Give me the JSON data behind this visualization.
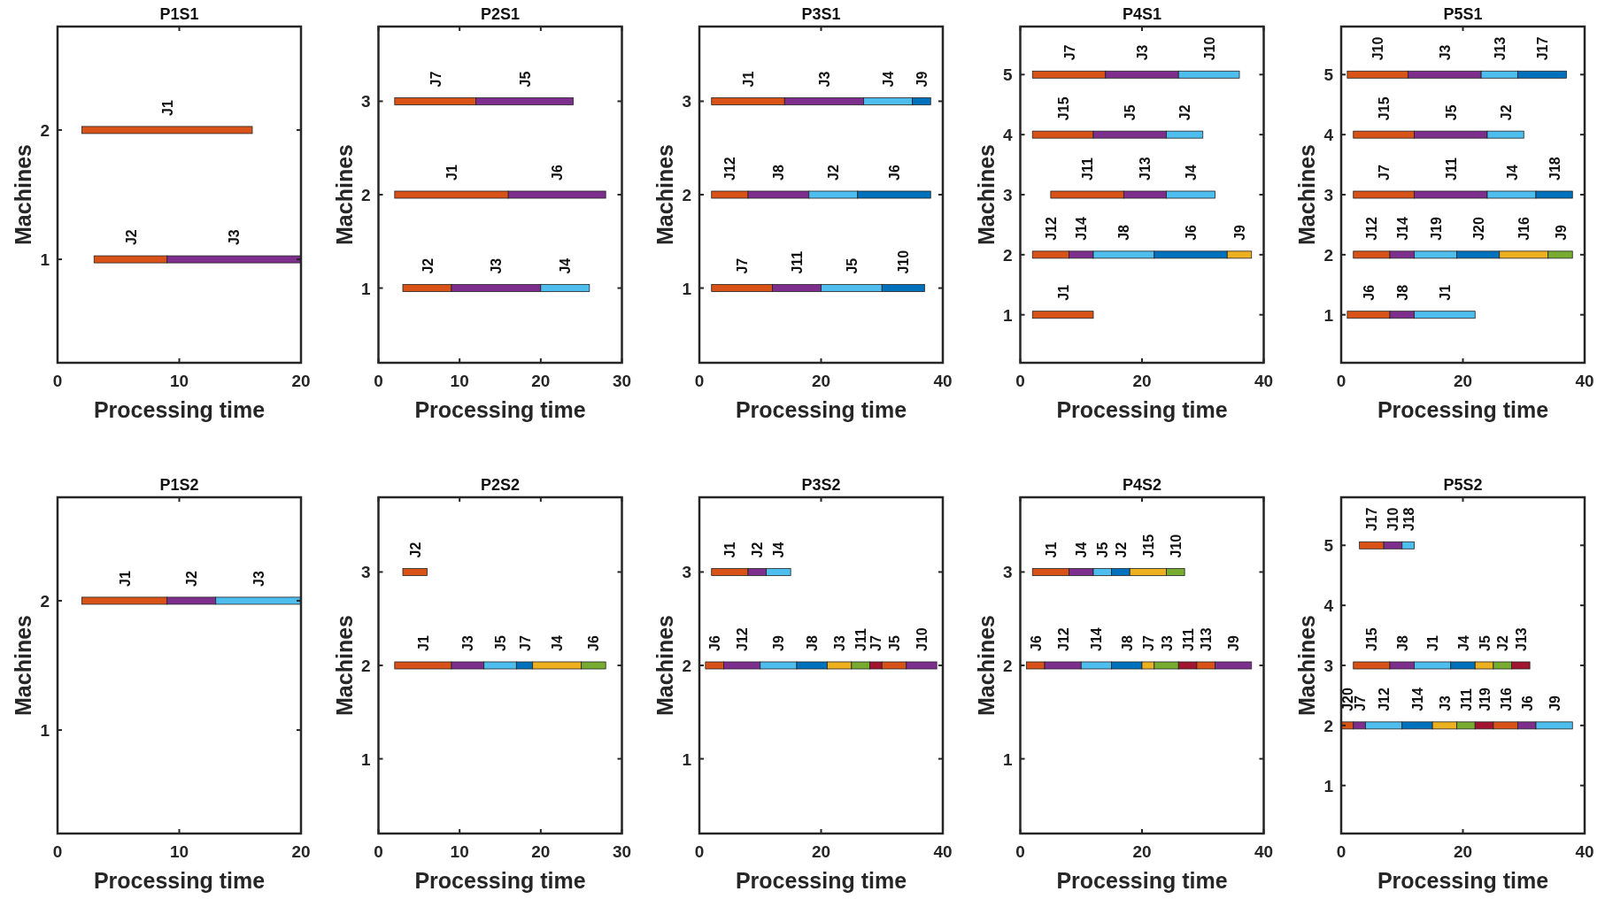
{
  "chart_data": [
    {
      "type": "bar",
      "orientation": "horizontal",
      "title": "P1S1",
      "xlabel": "Processing time",
      "ylabel": "Machines",
      "xlim": [
        0,
        20
      ],
      "xticks": [
        0,
        10,
        20
      ],
      "categories": [
        "2",
        "1"
      ],
      "series": [
        {
          "name": "J1",
          "color": "#d95319",
          "values": [
            14,
            null
          ],
          "base": [
            2,
            null
          ]
        },
        {
          "name": "J2",
          "color": "#d95319",
          "values": [
            null,
            6
          ],
          "base": [
            null,
            3
          ]
        },
        {
          "name": "J3",
          "color": "#7e2f8e",
          "values": [
            null,
            11
          ],
          "base": [
            null,
            9
          ]
        }
      ]
    },
    {
      "type": "bar",
      "orientation": "horizontal",
      "title": "P2S1",
      "xlabel": "Processing time",
      "ylabel": "Machines",
      "xlim": [
        0,
        30
      ],
      "xticks": [
        0,
        10,
        20,
        30
      ],
      "categories": [
        "3",
        "2",
        "1"
      ],
      "series": [
        {
          "name": "J7",
          "color": "#d95319",
          "values": [
            10,
            null,
            null
          ],
          "base": [
            2,
            null,
            null
          ]
        },
        {
          "name": "J5",
          "color": "#7e2f8e",
          "values": [
            12,
            null,
            null
          ],
          "base": [
            12,
            null,
            null
          ]
        },
        {
          "name": "J1",
          "color": "#d95319",
          "values": [
            null,
            14,
            null
          ],
          "base": [
            null,
            2,
            null
          ]
        },
        {
          "name": "J6",
          "color": "#7e2f8e",
          "values": [
            null,
            12,
            null
          ],
          "base": [
            null,
            16,
            null
          ]
        },
        {
          "name": "J2",
          "color": "#d95319",
          "values": [
            null,
            null,
            6
          ],
          "base": [
            null,
            null,
            3
          ]
        },
        {
          "name": "J3",
          "color": "#7e2f8e",
          "values": [
            null,
            null,
            11
          ],
          "base": [
            null,
            null,
            9
          ]
        },
        {
          "name": "J4",
          "color": "#4dbeee",
          "values": [
            null,
            null,
            6
          ],
          "base": [
            null,
            null,
            20
          ]
        }
      ]
    },
    {
      "type": "bar",
      "orientation": "horizontal",
      "title": "P3S1",
      "xlabel": "Processing time",
      "ylabel": "Machines",
      "xlim": [
        0,
        40
      ],
      "xticks": [
        0,
        20,
        40
      ],
      "categories": [
        "3",
        "2",
        "1"
      ],
      "series": [
        {
          "name": "J1",
          "color": "#d95319",
          "values": [
            12,
            null,
            null
          ],
          "base": [
            2,
            null,
            null
          ]
        },
        {
          "name": "J3",
          "color": "#7e2f8e",
          "values": [
            13,
            null,
            null
          ],
          "base": [
            14,
            null,
            null
          ]
        },
        {
          "name": "J4",
          "color": "#4dbeee",
          "values": [
            8,
            null,
            null
          ],
          "base": [
            27,
            null,
            null
          ]
        },
        {
          "name": "J9",
          "color": "#0072bd",
          "values": [
            3,
            null,
            null
          ],
          "base": [
            35,
            null,
            null
          ]
        },
        {
          "name": "J12",
          "color": "#d95319",
          "values": [
            null,
            6,
            null
          ],
          "base": [
            null,
            2,
            null
          ]
        },
        {
          "name": "J8",
          "color": "#7e2f8e",
          "values": [
            null,
            10,
            null
          ],
          "base": [
            null,
            8,
            null
          ]
        },
        {
          "name": "J2",
          "color": "#4dbeee",
          "values": [
            null,
            8,
            null
          ],
          "base": [
            null,
            18,
            null
          ]
        },
        {
          "name": "J6",
          "color": "#0072bd",
          "values": [
            null,
            12,
            null
          ],
          "base": [
            null,
            26,
            null
          ]
        },
        {
          "name": "J7",
          "color": "#d95319",
          "values": [
            null,
            null,
            10
          ],
          "base": [
            null,
            null,
            2
          ]
        },
        {
          "name": "J11",
          "color": "#7e2f8e",
          "values": [
            null,
            null,
            8
          ],
          "base": [
            null,
            null,
            12
          ]
        },
        {
          "name": "J5",
          "color": "#4dbeee",
          "values": [
            null,
            null,
            10
          ],
          "base": [
            null,
            null,
            20
          ]
        },
        {
          "name": "J10",
          "color": "#0072bd",
          "values": [
            null,
            null,
            7
          ],
          "base": [
            null,
            null,
            30
          ]
        }
      ]
    },
    {
      "type": "bar",
      "orientation": "horizontal",
      "title": "P4S1",
      "xlabel": "Processing time",
      "ylabel": "Machines",
      "xlim": [
        0,
        40
      ],
      "xticks": [
        0,
        20,
        40
      ],
      "categories": [
        "5",
        "4",
        "3",
        "2",
        "1"
      ],
      "series": [
        {
          "name": "J7",
          "color": "#d95319",
          "values": [
            12,
            null,
            null,
            null,
            null
          ],
          "base": [
            2,
            null,
            null,
            null,
            null
          ]
        },
        {
          "name": "J3",
          "color": "#7e2f8e",
          "values": [
            12,
            null,
            null,
            null,
            null
          ],
          "base": [
            14,
            null,
            null,
            null,
            null
          ]
        },
        {
          "name": "J10",
          "color": "#4dbeee",
          "values": [
            10,
            null,
            null,
            null,
            null
          ],
          "base": [
            26,
            null,
            null,
            null,
            null
          ]
        },
        {
          "name": "J15",
          "color": "#d95319",
          "values": [
            null,
            10,
            null,
            null,
            null
          ],
          "base": [
            null,
            2,
            null,
            null,
            null
          ]
        },
        {
          "name": "J5",
          "color": "#7e2f8e",
          "values": [
            null,
            12,
            null,
            null,
            null
          ],
          "base": [
            null,
            12,
            null,
            null,
            null
          ]
        },
        {
          "name": "J2",
          "color": "#4dbeee",
          "values": [
            null,
            6,
            null,
            null,
            null
          ],
          "base": [
            null,
            24,
            null,
            null,
            null
          ]
        },
        {
          "name": "J11",
          "color": "#d95319",
          "values": [
            null,
            null,
            12,
            null,
            null
          ],
          "base": [
            null,
            null,
            5,
            null,
            null
          ]
        },
        {
          "name": "J13",
          "color": "#7e2f8e",
          "values": [
            null,
            null,
            7,
            null,
            null
          ],
          "base": [
            null,
            null,
            17,
            null,
            null
          ]
        },
        {
          "name": "J4",
          "color": "#4dbeee",
          "values": [
            null,
            null,
            8,
            null,
            null
          ],
          "base": [
            null,
            null,
            24,
            null,
            null
          ]
        },
        {
          "name": "J12",
          "color": "#d95319",
          "values": [
            null,
            null,
            null,
            6,
            null
          ],
          "base": [
            null,
            null,
            null,
            2,
            null
          ]
        },
        {
          "name": "J14",
          "color": "#7e2f8e",
          "values": [
            null,
            null,
            null,
            4,
            null
          ],
          "base": [
            null,
            null,
            null,
            8,
            null
          ]
        },
        {
          "name": "J8",
          "color": "#4dbeee",
          "values": [
            null,
            null,
            null,
            10,
            null
          ],
          "base": [
            null,
            null,
            null,
            12,
            null
          ]
        },
        {
          "name": "J6",
          "color": "#0072bd",
          "values": [
            null,
            null,
            null,
            12,
            null
          ],
          "base": [
            null,
            null,
            null,
            22,
            null
          ]
        },
        {
          "name": "J9",
          "color": "#edb120",
          "values": [
            null,
            null,
            null,
            4,
            null
          ],
          "base": [
            null,
            null,
            null,
            34,
            null
          ]
        },
        {
          "name": "J1",
          "color": "#d95319",
          "values": [
            null,
            null,
            null,
            null,
            10
          ],
          "base": [
            null,
            null,
            null,
            null,
            2
          ]
        }
      ]
    },
    {
      "type": "bar",
      "orientation": "horizontal",
      "title": "P5S1",
      "xlabel": "Processing time",
      "ylabel": "Machines",
      "xlim": [
        0,
        40
      ],
      "xticks": [
        0,
        20,
        40
      ],
      "categories": [
        "5",
        "4",
        "3",
        "2",
        "1"
      ],
      "series": [
        {
          "name": "J10",
          "color": "#d95319",
          "values": [
            10,
            null,
            null,
            null,
            null
          ],
          "base": [
            1,
            null,
            null,
            null,
            null
          ]
        },
        {
          "name": "J3",
          "color": "#7e2f8e",
          "values": [
            12,
            null,
            null,
            null,
            null
          ],
          "base": [
            11,
            null,
            null,
            null,
            null
          ]
        },
        {
          "name": "J13",
          "color": "#4dbeee",
          "values": [
            6,
            null,
            null,
            null,
            null
          ],
          "base": [
            23,
            null,
            null,
            null,
            null
          ]
        },
        {
          "name": "J17",
          "color": "#0072bd",
          "values": [
            8,
            null,
            null,
            null,
            null
          ],
          "base": [
            29,
            null,
            null,
            null,
            null
          ]
        },
        {
          "name": "J15",
          "color": "#d95319",
          "values": [
            null,
            10,
            null,
            null,
            null
          ],
          "base": [
            null,
            2,
            null,
            null,
            null
          ]
        },
        {
          "name": "J5",
          "color": "#7e2f8e",
          "values": [
            null,
            12,
            null,
            null,
            null
          ],
          "base": [
            null,
            12,
            null,
            null,
            null
          ]
        },
        {
          "name": "J2",
          "color": "#4dbeee",
          "values": [
            null,
            6,
            null,
            null,
            null
          ],
          "base": [
            null,
            24,
            null,
            null,
            null
          ]
        },
        {
          "name": "J7",
          "color": "#d95319",
          "values": [
            null,
            null,
            10,
            null,
            null
          ],
          "base": [
            null,
            null,
            2,
            null,
            null
          ]
        },
        {
          "name": "J11",
          "color": "#7e2f8e",
          "values": [
            null,
            null,
            12,
            null,
            null
          ],
          "base": [
            null,
            null,
            12,
            null,
            null
          ]
        },
        {
          "name": "J4",
          "color": "#4dbeee",
          "values": [
            null,
            null,
            8,
            null,
            null
          ],
          "base": [
            null,
            null,
            24,
            null,
            null
          ]
        },
        {
          "name": "J18",
          "color": "#0072bd",
          "values": [
            null,
            null,
            6,
            null,
            null
          ],
          "base": [
            null,
            null,
            32,
            null,
            null
          ]
        },
        {
          "name": "J12",
          "color": "#d95319",
          "values": [
            null,
            null,
            null,
            6,
            null
          ],
          "base": [
            null,
            null,
            null,
            2,
            null
          ]
        },
        {
          "name": "J14",
          "color": "#7e2f8e",
          "values": [
            null,
            null,
            null,
            4,
            null
          ],
          "base": [
            null,
            null,
            null,
            8,
            null
          ]
        },
        {
          "name": "J19",
          "color": "#4dbeee",
          "values": [
            null,
            null,
            null,
            7,
            null
          ],
          "base": [
            null,
            null,
            null,
            12,
            null
          ]
        },
        {
          "name": "J20",
          "color": "#0072bd",
          "values": [
            null,
            null,
            null,
            7,
            null
          ],
          "base": [
            null,
            null,
            null,
            19,
            null
          ]
        },
        {
          "name": "J16",
          "color": "#edb120",
          "values": [
            null,
            null,
            null,
            8,
            null
          ],
          "base": [
            null,
            null,
            null,
            26,
            null
          ]
        },
        {
          "name": "J9",
          "color": "#77ac30",
          "values": [
            null,
            null,
            null,
            4,
            null
          ],
          "base": [
            null,
            null,
            null,
            34,
            null
          ]
        },
        {
          "name": "J6",
          "color": "#d95319",
          "values": [
            null,
            null,
            null,
            null,
            7
          ],
          "base": [
            null,
            null,
            null,
            null,
            1
          ]
        },
        {
          "name": "J8",
          "color": "#7e2f8e",
          "values": [
            null,
            null,
            null,
            null,
            4
          ],
          "base": [
            null,
            null,
            null,
            null,
            8
          ]
        },
        {
          "name": "J1",
          "color": "#4dbeee",
          "values": [
            null,
            null,
            null,
            null,
            10
          ],
          "base": [
            null,
            null,
            null,
            null,
            12
          ]
        }
      ]
    },
    {
      "type": "bar",
      "orientation": "horizontal",
      "title": "P1S2",
      "xlabel": "Processing time",
      "ylabel": "Machines",
      "xlim": [
        0,
        20
      ],
      "xticks": [
        0,
        10,
        20
      ],
      "categories": [
        "2",
        "1"
      ],
      "series": [
        {
          "name": "J1",
          "color": "#d95319",
          "values": [
            7,
            null
          ],
          "base": [
            2,
            null
          ]
        },
        {
          "name": "J2",
          "color": "#7e2f8e",
          "values": [
            4,
            null
          ],
          "base": [
            9,
            null
          ]
        },
        {
          "name": "J3",
          "color": "#4dbeee",
          "values": [
            7,
            null
          ],
          "base": [
            13,
            null
          ]
        }
      ]
    },
    {
      "type": "bar",
      "orientation": "horizontal",
      "title": "P2S2",
      "xlabel": "Processing time",
      "ylabel": "Machines",
      "xlim": [
        0,
        30
      ],
      "xticks": [
        0,
        10,
        20,
        30
      ],
      "categories": [
        "3",
        "2",
        "1"
      ],
      "series": [
        {
          "name": "J2",
          "color": "#d95319",
          "values": [
            3,
            null,
            null
          ],
          "base": [
            3,
            null,
            null
          ]
        },
        {
          "name": "J1",
          "color": "#d95319",
          "values": [
            null,
            7,
            null
          ],
          "base": [
            null,
            2,
            null
          ]
        },
        {
          "name": "J3",
          "color": "#7e2f8e",
          "values": [
            null,
            4,
            null
          ],
          "base": [
            null,
            9,
            null
          ]
        },
        {
          "name": "J5",
          "color": "#4dbeee",
          "values": [
            null,
            4,
            null
          ],
          "base": [
            null,
            13,
            null
          ]
        },
        {
          "name": "J7",
          "color": "#0072bd",
          "values": [
            null,
            2,
            null
          ],
          "base": [
            null,
            17,
            null
          ]
        },
        {
          "name": "J4",
          "color": "#edb120",
          "values": [
            null,
            6,
            null
          ],
          "base": [
            null,
            19,
            null
          ]
        },
        {
          "name": "J6",
          "color": "#77ac30",
          "values": [
            null,
            3,
            null
          ],
          "base": [
            null,
            25,
            null
          ]
        }
      ]
    },
    {
      "type": "bar",
      "orientation": "horizontal",
      "title": "P3S2",
      "xlabel": "Processing time",
      "ylabel": "Machines",
      "xlim": [
        0,
        40
      ],
      "xticks": [
        0,
        20,
        40
      ],
      "categories": [
        "3",
        "2",
        "1"
      ],
      "series": [
        {
          "name": "J1",
          "color": "#d95319",
          "values": [
            6,
            null,
            null
          ],
          "base": [
            2,
            null,
            null
          ]
        },
        {
          "name": "J2",
          "color": "#7e2f8e",
          "values": [
            3,
            null,
            null
          ],
          "base": [
            8,
            null,
            null
          ]
        },
        {
          "name": "J4",
          "color": "#4dbeee",
          "values": [
            4,
            null,
            null
          ],
          "base": [
            11,
            null,
            null
          ]
        },
        {
          "name": "J6",
          "color": "#d95319",
          "values": [
            null,
            3,
            null
          ],
          "base": [
            null,
            1,
            null
          ]
        },
        {
          "name": "J12",
          "color": "#7e2f8e",
          "values": [
            null,
            6,
            null
          ],
          "base": [
            null,
            4,
            null
          ]
        },
        {
          "name": "J9",
          "color": "#4dbeee",
          "values": [
            null,
            6,
            null
          ],
          "base": [
            null,
            10,
            null
          ]
        },
        {
          "name": "J8",
          "color": "#0072bd",
          "values": [
            null,
            5,
            null
          ],
          "base": [
            null,
            16,
            null
          ]
        },
        {
          "name": "J3",
          "color": "#edb120",
          "values": [
            null,
            4,
            null
          ],
          "base": [
            null,
            21,
            null
          ]
        },
        {
          "name": "J11",
          "color": "#77ac30",
          "values": [
            null,
            3,
            null
          ],
          "base": [
            null,
            25,
            null
          ]
        },
        {
          "name": "J7",
          "color": "#a2142f",
          "values": [
            null,
            2,
            null
          ],
          "base": [
            null,
            28,
            null
          ]
        },
        {
          "name": "J5",
          "color": "#d95319",
          "values": [
            null,
            4,
            null
          ],
          "base": [
            null,
            30,
            null
          ]
        },
        {
          "name": "J10",
          "color": "#7e2f8e",
          "values": [
            null,
            5,
            null
          ],
          "base": [
            null,
            34,
            null
          ]
        }
      ]
    },
    {
      "type": "bar",
      "orientation": "horizontal",
      "title": "P4S2",
      "xlabel": "Processing time",
      "ylabel": "Machines",
      "xlim": [
        0,
        40
      ],
      "xticks": [
        0,
        20,
        40
      ],
      "categories": [
        "3",
        "2",
        "1"
      ],
      "series": [
        {
          "name": "J1",
          "color": "#d95319",
          "values": [
            6,
            null,
            null
          ],
          "base": [
            2,
            null,
            null
          ]
        },
        {
          "name": "J4",
          "color": "#7e2f8e",
          "values": [
            4,
            null,
            null
          ],
          "base": [
            8,
            null,
            null
          ]
        },
        {
          "name": "J5",
          "color": "#4dbeee",
          "values": [
            3,
            null,
            null
          ],
          "base": [
            12,
            null,
            null
          ]
        },
        {
          "name": "J2",
          "color": "#0072bd",
          "values": [
            3,
            null,
            null
          ],
          "base": [
            15,
            null,
            null
          ]
        },
        {
          "name": "J15",
          "color": "#edb120",
          "values": [
            6,
            null,
            null
          ],
          "base": [
            18,
            null,
            null
          ]
        },
        {
          "name": "J10",
          "color": "#77ac30",
          "values": [
            3,
            null,
            null
          ],
          "base": [
            24,
            null,
            null
          ]
        },
        {
          "name": "J6",
          "color": "#d95319",
          "values": [
            null,
            3,
            null
          ],
          "base": [
            null,
            1,
            null
          ]
        },
        {
          "name": "J12",
          "color": "#7e2f8e",
          "values": [
            null,
            6,
            null
          ],
          "base": [
            null,
            4,
            null
          ]
        },
        {
          "name": "J14",
          "color": "#4dbeee",
          "values": [
            null,
            5,
            null
          ],
          "base": [
            null,
            10,
            null
          ]
        },
        {
          "name": "J8",
          "color": "#0072bd",
          "values": [
            null,
            5,
            null
          ],
          "base": [
            null,
            15,
            null
          ]
        },
        {
          "name": "J7",
          "color": "#edb120",
          "values": [
            null,
            2,
            null
          ],
          "base": [
            null,
            20,
            null
          ]
        },
        {
          "name": "J3",
          "color": "#77ac30",
          "values": [
            null,
            4,
            null
          ],
          "base": [
            null,
            22,
            null
          ]
        },
        {
          "name": "J11",
          "color": "#a2142f",
          "values": [
            null,
            3,
            null
          ],
          "base": [
            null,
            26,
            null
          ]
        },
        {
          "name": "J13",
          "color": "#d95319",
          "values": [
            null,
            3,
            null
          ],
          "base": [
            null,
            29,
            null
          ]
        },
        {
          "name": "J9",
          "color": "#7e2f8e",
          "values": [
            null,
            6,
            null
          ],
          "base": [
            null,
            32,
            null
          ]
        }
      ]
    },
    {
      "type": "bar",
      "orientation": "horizontal",
      "title": "P5S2",
      "xlabel": "Processing time",
      "ylabel": "Machines",
      "xlim": [
        0,
        40
      ],
      "xticks": [
        0,
        20,
        40
      ],
      "categories": [
        "5",
        "4",
        "3",
        "2",
        "1"
      ],
      "series": [
        {
          "name": "J17",
          "color": "#d95319",
          "values": [
            4,
            null,
            null,
            null,
            null
          ],
          "base": [
            3,
            null,
            null,
            null,
            null
          ]
        },
        {
          "name": "J10",
          "color": "#7e2f8e",
          "values": [
            3,
            null,
            null,
            null,
            null
          ],
          "base": [
            7,
            null,
            null,
            null,
            null
          ]
        },
        {
          "name": "J18",
          "color": "#4dbeee",
          "values": [
            2,
            null,
            null,
            null,
            null
          ],
          "base": [
            10,
            null,
            null,
            null,
            null
          ]
        },
        {
          "name": "J15",
          "color": "#d95319",
          "values": [
            null,
            null,
            6,
            null,
            null
          ],
          "base": [
            null,
            null,
            2,
            null,
            null
          ]
        },
        {
          "name": "J8",
          "color": "#7e2f8e",
          "values": [
            null,
            null,
            4,
            null,
            null
          ],
          "base": [
            null,
            null,
            8,
            null,
            null
          ]
        },
        {
          "name": "J1",
          "color": "#4dbeee",
          "values": [
            null,
            null,
            6,
            null,
            null
          ],
          "base": [
            null,
            null,
            12,
            null,
            null
          ]
        },
        {
          "name": "J4",
          "color": "#0072bd",
          "values": [
            null,
            null,
            4,
            null,
            null
          ],
          "base": [
            null,
            null,
            18,
            null,
            null
          ]
        },
        {
          "name": "J5",
          "color": "#edb120",
          "values": [
            null,
            null,
            3,
            null,
            null
          ],
          "base": [
            null,
            null,
            22,
            null,
            null
          ]
        },
        {
          "name": "J2",
          "color": "#77ac30",
          "values": [
            null,
            null,
            3,
            null,
            null
          ],
          "base": [
            null,
            null,
            25,
            null,
            null
          ]
        },
        {
          "name": "J13",
          "color": "#a2142f",
          "values": [
            null,
            null,
            3,
            null,
            null
          ],
          "base": [
            null,
            null,
            28,
            null,
            null
          ]
        },
        {
          "name": "J20",
          "color": "#d95319",
          "values": [
            null,
            null,
            null,
            2,
            null
          ],
          "base": [
            null,
            null,
            null,
            0,
            null
          ]
        },
        {
          "name": "J7",
          "color": "#7e2f8e",
          "values": [
            null,
            null,
            null,
            2,
            null
          ],
          "base": [
            null,
            null,
            null,
            2,
            null
          ]
        },
        {
          "name": "J12",
          "color": "#4dbeee",
          "values": [
            null,
            null,
            null,
            6,
            null
          ],
          "base": [
            null,
            null,
            null,
            4,
            null
          ]
        },
        {
          "name": "J14",
          "color": "#0072bd",
          "values": [
            null,
            null,
            null,
            5,
            null
          ],
          "base": [
            null,
            null,
            null,
            10,
            null
          ]
        },
        {
          "name": "J3",
          "color": "#edb120",
          "values": [
            null,
            null,
            null,
            4,
            null
          ],
          "base": [
            null,
            null,
            null,
            15,
            null
          ]
        },
        {
          "name": "J11",
          "color": "#77ac30",
          "values": [
            null,
            null,
            null,
            3,
            null
          ],
          "base": [
            null,
            null,
            null,
            19,
            null
          ]
        },
        {
          "name": "J19",
          "color": "#a2142f",
          "values": [
            null,
            null,
            null,
            3,
            null
          ],
          "base": [
            null,
            null,
            null,
            22,
            null
          ]
        },
        {
          "name": "J16",
          "color": "#d95319",
          "values": [
            null,
            null,
            null,
            4,
            null
          ],
          "base": [
            null,
            null,
            null,
            25,
            null
          ]
        },
        {
          "name": "J6",
          "color": "#7e2f8e",
          "values": [
            null,
            null,
            null,
            3,
            null
          ],
          "base": [
            null,
            null,
            null,
            29,
            null
          ]
        },
        {
          "name": "J9",
          "color": "#4dbeee",
          "values": [
            null,
            null,
            null,
            6,
            null
          ],
          "base": [
            null,
            null,
            null,
            32,
            null
          ]
        }
      ]
    }
  ]
}
